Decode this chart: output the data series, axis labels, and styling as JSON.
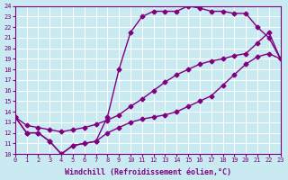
{
  "xlabel": "Windchill (Refroidissement éolien,°C)",
  "bg_color": "#c8eaf0",
  "line_color": "#800080",
  "grid_color": "#ffffff",
  "xlim": [
    0,
    23
  ],
  "ylim": [
    10,
    24
  ],
  "xticks": [
    0,
    1,
    2,
    3,
    4,
    5,
    6,
    7,
    8,
    9,
    10,
    11,
    12,
    13,
    14,
    15,
    16,
    17,
    18,
    19,
    20,
    21,
    22,
    23
  ],
  "yticks": [
    10,
    11,
    12,
    13,
    14,
    15,
    16,
    17,
    18,
    19,
    20,
    21,
    22,
    23,
    24
  ],
  "line1_x": [
    0,
    1,
    2,
    3,
    4,
    5,
    6,
    7,
    8,
    9,
    10,
    11,
    12,
    13,
    14,
    15,
    16,
    17,
    18,
    19,
    20,
    21,
    22,
    23
  ],
  "line1_y": [
    13.5,
    12.0,
    12.0,
    11.2,
    10.0,
    10.8,
    11.0,
    11.2,
    12.0,
    12.5,
    13.0,
    13.3,
    13.5,
    13.7,
    14.0,
    14.5,
    15.0,
    15.5,
    16.5,
    17.5,
    18.5,
    19.2,
    19.5,
    19.0
  ],
  "line2_x": [
    0,
    1,
    2,
    3,
    4,
    5,
    6,
    7,
    8,
    9,
    10,
    11,
    12,
    13,
    14,
    15,
    16,
    17,
    18,
    19,
    20,
    21,
    22,
    23
  ],
  "line2_y": [
    13.5,
    12.0,
    12.0,
    11.2,
    10.0,
    10.8,
    11.0,
    11.2,
    13.5,
    18.0,
    21.5,
    23.0,
    23.5,
    23.5,
    23.5,
    24.0,
    23.8,
    23.5,
    23.5,
    23.3,
    23.3,
    22.0,
    21.0,
    19.0
  ],
  "line3_x": [
    0,
    1,
    2,
    3,
    4,
    5,
    6,
    7,
    8,
    9,
    10,
    11,
    12,
    13,
    14,
    15,
    16,
    17,
    18,
    19,
    20,
    21,
    22,
    23
  ],
  "line3_y": [
    13.5,
    12.7,
    12.5,
    12.3,
    12.1,
    12.3,
    12.5,
    12.8,
    13.2,
    13.7,
    14.5,
    15.2,
    16.0,
    16.8,
    17.5,
    18.0,
    18.5,
    18.8,
    19.0,
    19.3,
    19.5,
    20.5,
    21.5,
    19.0
  ],
  "marker": "D",
  "markersize": 2.5,
  "linewidth": 1.0,
  "xlabel_fontsize": 6.0,
  "tick_fontsize": 5.0
}
